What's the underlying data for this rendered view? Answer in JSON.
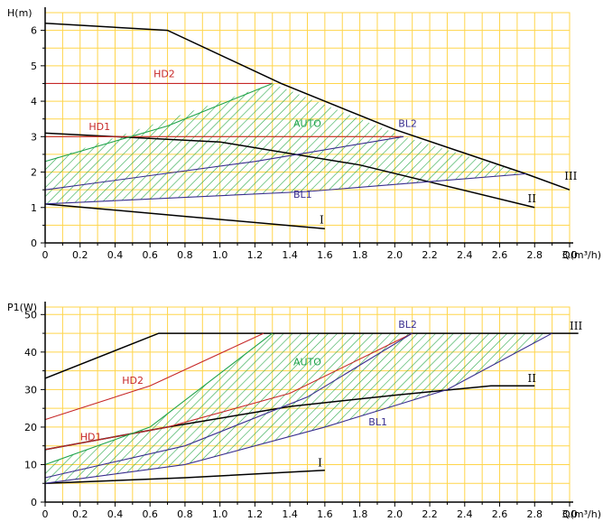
{
  "colors": {
    "grid": "#ffd54a",
    "axis": "#000000",
    "black_curve": "#000000",
    "hd": "#c62828",
    "bl": "#3a2f8f",
    "auto": "#1ea34a",
    "hatch": "#2aa84a"
  },
  "chart_data": [
    {
      "type": "line",
      "ylabel": "H(m)",
      "xlabel": "Q(m³/h)",
      "xlim": [
        0,
        3.0
      ],
      "ylim": [
        0,
        6.5
      ],
      "x_ticks": [
        "0",
        "0.2",
        "0.4",
        "0.6",
        "0.8",
        "1.0",
        "1.2",
        "1.4",
        "1.6",
        "1.8",
        "2.0",
        "2.2",
        "2.4",
        "2.6",
        "2.8",
        "3.0"
      ],
      "y_ticks": [
        "0",
        "1",
        "2",
        "3",
        "4",
        "5",
        "6"
      ],
      "grid": true,
      "series": [
        {
          "name": "III",
          "color": "black_curve",
          "x": [
            0,
            0.7,
            1.35,
            2.0,
            2.75,
            3.0
          ],
          "y": [
            6.2,
            6.0,
            4.5,
            3.2,
            1.95,
            1.5
          ]
        },
        {
          "name": "II",
          "color": "black_curve",
          "x": [
            0,
            1.0,
            1.8,
            2.8
          ],
          "y": [
            3.1,
            2.85,
            2.2,
            1.0
          ]
        },
        {
          "name": "I",
          "color": "black_curve",
          "x": [
            0,
            0.8,
            1.6
          ],
          "y": [
            1.1,
            0.75,
            0.4
          ]
        },
        {
          "name": "HD2",
          "color": "hd",
          "x": [
            0,
            1.3
          ],
          "y": [
            4.5,
            4.5
          ]
        },
        {
          "name": "HD1",
          "color": "hd",
          "x": [
            0,
            2.05
          ],
          "y": [
            3.0,
            3.0
          ]
        },
        {
          "name": "BL2",
          "color": "bl",
          "x": [
            0,
            1.2,
            2.05
          ],
          "y": [
            1.5,
            2.3,
            3.0
          ]
        },
        {
          "name": "BL1",
          "color": "bl",
          "x": [
            0,
            1.5,
            2.75
          ],
          "y": [
            1.1,
            1.45,
            1.95
          ]
        },
        {
          "name": "AUTO",
          "color": "auto",
          "x": [
            0,
            0.7,
            1.3
          ],
          "y": [
            2.3,
            3.3,
            4.5
          ]
        }
      ],
      "labels": [
        {
          "text": "HD2",
          "x": 0.62,
          "y": 4.68,
          "color": "hd",
          "cls": "curve-label"
        },
        {
          "text": "HD1",
          "x": 0.25,
          "y": 3.18,
          "color": "hd",
          "cls": "curve-label"
        },
        {
          "text": "AUTO",
          "x": 1.42,
          "y": 3.28,
          "color": "auto",
          "cls": "curve-label"
        },
        {
          "text": "BL2",
          "x": 2.02,
          "y": 3.28,
          "color": "bl",
          "cls": "curve-label"
        },
        {
          "text": "BL1",
          "x": 1.42,
          "y": 1.28,
          "color": "bl",
          "cls": "curve-label"
        },
        {
          "text": "I",
          "x": 1.57,
          "y": 0.55,
          "color": "black_curve",
          "cls": "roman"
        },
        {
          "text": "II",
          "x": 2.76,
          "y": 1.15,
          "color": "black_curve",
          "cls": "roman"
        },
        {
          "text": "III",
          "x": 2.97,
          "y": 1.78,
          "color": "black_curve",
          "cls": "roman"
        }
      ],
      "hatch_region": {
        "x": [
          0,
          1.3,
          2.05,
          2.75,
          1.5,
          0
        ],
        "y": [
          2.3,
          4.5,
          3.0,
          1.95,
          1.45,
          1.1
        ]
      }
    },
    {
      "type": "line",
      "ylabel": "P1(W)",
      "xlabel": "Q(m³/h)",
      "xlim": [
        0,
        3.0
      ],
      "ylim": [
        0,
        52
      ],
      "x_ticks": [
        "0",
        "0.2",
        "0.4",
        "0.6",
        "0.8",
        "1.0",
        "1.2",
        "1.4",
        "1.6",
        "1.8",
        "2.0",
        "2.2",
        "2.4",
        "2.6",
        "2.8",
        "3.0"
      ],
      "y_ticks": [
        "0",
        "10",
        "20",
        "30",
        "40",
        "50"
      ],
      "grid": true,
      "series": [
        {
          "name": "III",
          "color": "black_curve",
          "x": [
            0,
            0.65,
            3.05
          ],
          "y": [
            33,
            45,
            45
          ]
        },
        {
          "name": "II",
          "color": "black_curve",
          "x": [
            0,
            0.7,
            1.4,
            2.0,
            2.55,
            2.8
          ],
          "y": [
            14,
            20,
            25.5,
            28.5,
            31,
            31
          ]
        },
        {
          "name": "I",
          "color": "black_curve",
          "x": [
            0,
            0.8,
            1.6
          ],
          "y": [
            5,
            6.5,
            8.5
          ]
        },
        {
          "name": "HD2",
          "color": "hd",
          "x": [
            0,
            0.6,
            1.25
          ],
          "y": [
            22,
            31,
            45
          ]
        },
        {
          "name": "HD1",
          "color": "hd",
          "x": [
            0,
            0.7,
            1.4,
            2.1
          ],
          "y": [
            14,
            20,
            29,
            45
          ]
        },
        {
          "name": "BL2",
          "color": "bl",
          "x": [
            0,
            0.8,
            1.5,
            2.1
          ],
          "y": [
            6.5,
            15,
            28,
            45
          ]
        },
        {
          "name": "BL1",
          "color": "bl",
          "x": [
            0,
            0.8,
            1.6,
            2.3,
            2.9
          ],
          "y": [
            5,
            10,
            20,
            30,
            45
          ]
        },
        {
          "name": "AUTO",
          "color": "auto",
          "x": [
            0,
            0.6,
            1.3
          ],
          "y": [
            10,
            20,
            45
          ]
        }
      ],
      "labels": [
        {
          "text": "HD2",
          "x": 0.44,
          "y": 31.5,
          "color": "hd",
          "cls": "curve-label"
        },
        {
          "text": "HD1",
          "x": 0.2,
          "y": 16.5,
          "color": "hd",
          "cls": "curve-label"
        },
        {
          "text": "AUTO",
          "x": 1.42,
          "y": 36.5,
          "color": "auto",
          "cls": "curve-label"
        },
        {
          "text": "BL2",
          "x": 2.02,
          "y": 46.5,
          "color": "bl",
          "cls": "curve-label"
        },
        {
          "text": "BL1",
          "x": 1.85,
          "y": 20.5,
          "color": "bl",
          "cls": "curve-label"
        },
        {
          "text": "I",
          "x": 1.56,
          "y": 9.5,
          "color": "black_curve",
          "cls": "roman"
        },
        {
          "text": "II",
          "x": 2.76,
          "y": 32,
          "color": "black_curve",
          "cls": "roman"
        },
        {
          "text": "III",
          "x": 3.0,
          "y": 46,
          "color": "black_curve",
          "cls": "roman"
        }
      ],
      "hatch_region": {
        "x": [
          0,
          0.6,
          1.3,
          2.9,
          2.3,
          1.6,
          0.8,
          0
        ],
        "y": [
          10,
          20,
          45,
          45,
          30,
          20,
          10,
          5
        ]
      }
    }
  ]
}
